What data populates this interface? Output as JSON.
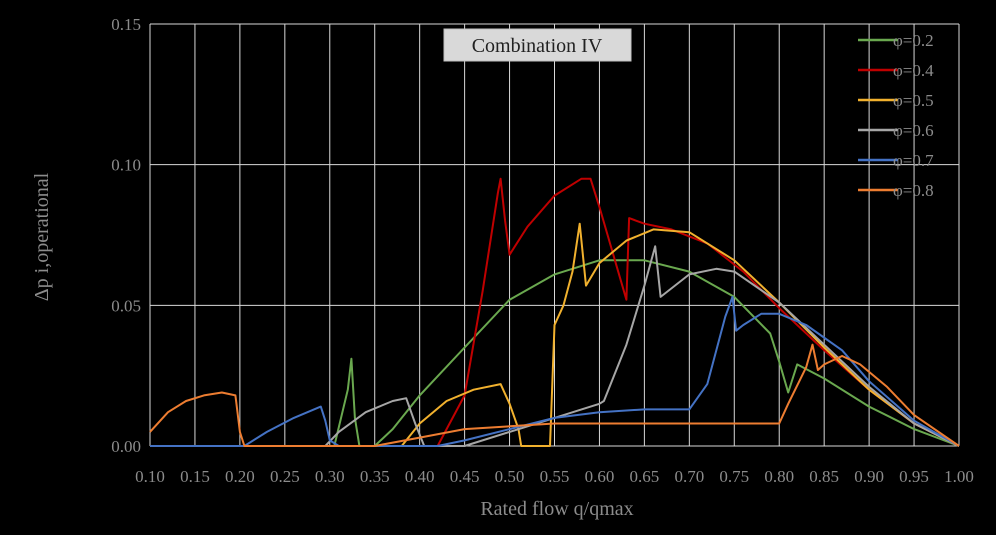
{
  "chart_data": {
    "type": "line",
    "title": "Combination IV",
    "xlabel": "Rated flow q/qmax",
    "ylabel": "Δp i,operational",
    "xlim": [
      0.1,
      1.0
    ],
    "ylim": [
      0.0,
      0.15
    ],
    "x_ticks": [
      "0.10",
      "0.15",
      "0.20",
      "0.25",
      "0.30",
      "0.35",
      "0.40",
      "0.45",
      "0.50",
      "0.55",
      "0.60",
      "0.65",
      "0.70",
      "0.75",
      "0.80",
      "0.85",
      "0.90",
      "0.95",
      "1.00"
    ],
    "y_ticks": [
      "0.00",
      "0.05",
      "0.10",
      "0.15"
    ],
    "grid": true,
    "legend_position": "top-right",
    "series": [
      {
        "name": "φ=0.2",
        "color": "#6aa84f",
        "points": [
          [
            0.1,
            0
          ],
          [
            0.305,
            0
          ],
          [
            0.32,
            0.02
          ],
          [
            0.324,
            0.031
          ],
          [
            0.328,
            0.01
          ],
          [
            0.333,
            0
          ],
          [
            0.35,
            0
          ],
          [
            0.37,
            0.006
          ],
          [
            0.4,
            0.018
          ],
          [
            0.45,
            0.035
          ],
          [
            0.5,
            0.052
          ],
          [
            0.55,
            0.061
          ],
          [
            0.6,
            0.066
          ],
          [
            0.65,
            0.066
          ],
          [
            0.7,
            0.062
          ],
          [
            0.75,
            0.053
          ],
          [
            0.79,
            0.04
          ],
          [
            0.8,
            0.03
          ],
          [
            0.81,
            0.019
          ],
          [
            0.82,
            0.029
          ],
          [
            0.85,
            0.024
          ],
          [
            0.9,
            0.014
          ],
          [
            0.95,
            0.006
          ],
          [
            1.0,
            0
          ]
        ]
      },
      {
        "name": "φ=0.4",
        "color": "#c00000",
        "points": [
          [
            0.1,
            0
          ],
          [
            0.42,
            0
          ],
          [
            0.45,
            0.018
          ],
          [
            0.47,
            0.055
          ],
          [
            0.487,
            0.09
          ],
          [
            0.49,
            0.095
          ],
          [
            0.495,
            0.08
          ],
          [
            0.5,
            0.068
          ],
          [
            0.52,
            0.078
          ],
          [
            0.55,
            0.089
          ],
          [
            0.58,
            0.095
          ],
          [
            0.59,
            0.095
          ],
          [
            0.6,
            0.085
          ],
          [
            0.62,
            0.063
          ],
          [
            0.63,
            0.052
          ],
          [
            0.633,
            0.081
          ],
          [
            0.65,
            0.079
          ],
          [
            0.68,
            0.077
          ],
          [
            0.72,
            0.072
          ],
          [
            0.76,
            0.062
          ],
          [
            0.8,
            0.049
          ],
          [
            0.85,
            0.034
          ],
          [
            0.9,
            0.02
          ],
          [
            0.95,
            0.008
          ],
          [
            1.0,
            0
          ]
        ]
      },
      {
        "name": "φ=0.5",
        "color": "#f1b12e",
        "points": [
          [
            0.1,
            0
          ],
          [
            0.38,
            0
          ],
          [
            0.4,
            0.008
          ],
          [
            0.43,
            0.016
          ],
          [
            0.46,
            0.02
          ],
          [
            0.49,
            0.022
          ],
          [
            0.5,
            0.015
          ],
          [
            0.51,
            0.006
          ],
          [
            0.513,
            0
          ],
          [
            0.545,
            0
          ],
          [
            0.55,
            0.043
          ],
          [
            0.56,
            0.05
          ],
          [
            0.57,
            0.062
          ],
          [
            0.578,
            0.079
          ],
          [
            0.585,
            0.057
          ],
          [
            0.6,
            0.065
          ],
          [
            0.63,
            0.073
          ],
          [
            0.66,
            0.077
          ],
          [
            0.7,
            0.076
          ],
          [
            0.75,
            0.066
          ],
          [
            0.8,
            0.051
          ],
          [
            0.85,
            0.035
          ],
          [
            0.9,
            0.02
          ],
          [
            0.95,
            0.008
          ],
          [
            1.0,
            0
          ]
        ]
      },
      {
        "name": "φ=0.6",
        "color": "#a6a6a6",
        "points": [
          [
            0.1,
            0
          ],
          [
            0.295,
            0
          ],
          [
            0.31,
            0.005
          ],
          [
            0.34,
            0.012
          ],
          [
            0.37,
            0.016
          ],
          [
            0.385,
            0.017
          ],
          [
            0.395,
            0.008
          ],
          [
            0.405,
            0
          ],
          [
            0.43,
            0
          ],
          [
            0.45,
            0
          ],
          [
            0.5,
            0.005
          ],
          [
            0.55,
            0.01
          ],
          [
            0.58,
            0.013
          ],
          [
            0.6,
            0.015
          ],
          [
            0.605,
            0.016
          ],
          [
            0.63,
            0.036
          ],
          [
            0.65,
            0.057
          ],
          [
            0.662,
            0.071
          ],
          [
            0.668,
            0.053
          ],
          [
            0.7,
            0.061
          ],
          [
            0.73,
            0.063
          ],
          [
            0.75,
            0.062
          ],
          [
            0.8,
            0.051
          ],
          [
            0.85,
            0.036
          ],
          [
            0.9,
            0.021
          ],
          [
            0.95,
            0.008
          ],
          [
            1.0,
            0
          ]
        ]
      },
      {
        "name": "φ=0.7",
        "color": "#4472c4",
        "points": [
          [
            0.1,
            0
          ],
          [
            0.205,
            0
          ],
          [
            0.23,
            0.005
          ],
          [
            0.26,
            0.01
          ],
          [
            0.29,
            0.014
          ],
          [
            0.295,
            0.009
          ],
          [
            0.3,
            0.002
          ],
          [
            0.31,
            0
          ],
          [
            0.42,
            0
          ],
          [
            0.45,
            0.002
          ],
          [
            0.5,
            0.006
          ],
          [
            0.55,
            0.01
          ],
          [
            0.6,
            0.012
          ],
          [
            0.65,
            0.013
          ],
          [
            0.7,
            0.013
          ],
          [
            0.72,
            0.022
          ],
          [
            0.74,
            0.046
          ],
          [
            0.748,
            0.053
          ],
          [
            0.752,
            0.041
          ],
          [
            0.76,
            0.043
          ],
          [
            0.78,
            0.047
          ],
          [
            0.8,
            0.047
          ],
          [
            0.83,
            0.043
          ],
          [
            0.87,
            0.034
          ],
          [
            0.9,
            0.023
          ],
          [
            0.95,
            0.009
          ],
          [
            1.0,
            0
          ]
        ]
      },
      {
        "name": "φ=0.8",
        "color": "#ed7d31",
        "points": [
          [
            0.1,
            0.005
          ],
          [
            0.12,
            0.012
          ],
          [
            0.14,
            0.016
          ],
          [
            0.16,
            0.018
          ],
          [
            0.18,
            0.019
          ],
          [
            0.195,
            0.018
          ],
          [
            0.2,
            0.005
          ],
          [
            0.205,
            0
          ],
          [
            0.3,
            0
          ],
          [
            0.35,
            0
          ],
          [
            0.4,
            0.003
          ],
          [
            0.45,
            0.006
          ],
          [
            0.5,
            0.007
          ],
          [
            0.55,
            0.008
          ],
          [
            0.6,
            0.008
          ],
          [
            0.7,
            0.008
          ],
          [
            0.8,
            0.008
          ],
          [
            0.81,
            0.015
          ],
          [
            0.83,
            0.028
          ],
          [
            0.837,
            0.036
          ],
          [
            0.843,
            0.027
          ],
          [
            0.85,
            0.029
          ],
          [
            0.87,
            0.032
          ],
          [
            0.89,
            0.029
          ],
          [
            0.92,
            0.021
          ],
          [
            0.95,
            0.011
          ],
          [
            1.0,
            0
          ]
        ]
      }
    ]
  }
}
